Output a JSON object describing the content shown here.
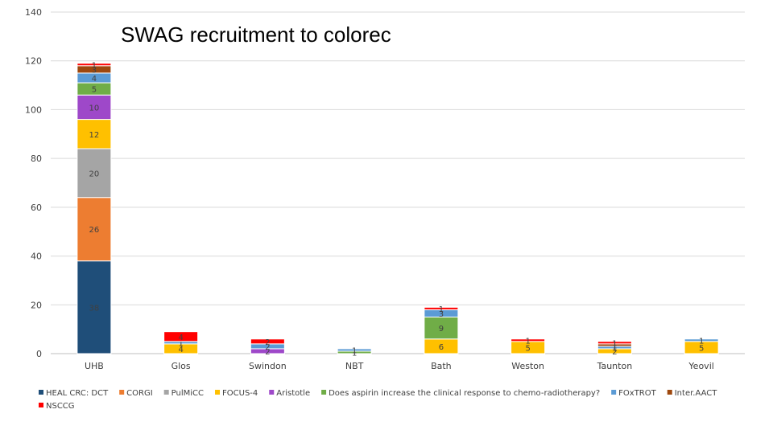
{
  "chart_data": {
    "type": "bar",
    "stacked": true,
    "title": "SWAG recruitment to colorec",
    "xlabel": "",
    "ylabel": "",
    "ylim": [
      0,
      140
    ],
    "yticks": [
      0,
      20,
      40,
      60,
      80,
      100,
      120,
      140
    ],
    "grid": true,
    "legend_position": "bottom",
    "categories": [
      "UHB",
      "Glos",
      "Swindon",
      "NBT",
      "Bath",
      "Weston",
      "Taunton",
      "Yeovil"
    ],
    "series": [
      {
        "name": "HEAL CRC: DCT",
        "color": "#1f4e79",
        "values": [
          38,
          0,
          0,
          0,
          0,
          0,
          0,
          0
        ]
      },
      {
        "name": "CORGI",
        "color": "#ed7d31",
        "values": [
          26,
          0,
          0,
          0,
          0,
          0,
          0,
          0
        ]
      },
      {
        "name": "PulMiCC",
        "color": "#a5a5a5",
        "values": [
          20,
          0,
          0,
          0,
          0,
          0,
          0,
          0
        ]
      },
      {
        "name": "FOCUS-4",
        "color": "#ffc000",
        "values": [
          12,
          4,
          0,
          0,
          6,
          5,
          2,
          5
        ]
      },
      {
        "name": "Aristotle",
        "color": "#9e48c9",
        "values": [
          10,
          0,
          2,
          0,
          0,
          0,
          0,
          0
        ]
      },
      {
        "name": "Does aspirin increase the clinical response to chemo-radiotherapy?",
        "color": "#70ad47",
        "values": [
          5,
          0,
          0,
          1,
          9,
          0,
          0,
          0
        ]
      },
      {
        "name": "FOxTROT",
        "color": "#5b9bd5",
        "values": [
          4,
          1,
          2,
          1,
          3,
          0,
          1,
          1
        ]
      },
      {
        "name": "Inter.AACT",
        "color": "#9e480e",
        "values": [
          3,
          0,
          0,
          0,
          0,
          0,
          1,
          0
        ]
      },
      {
        "name": "NSCCG",
        "color": "#ff0000",
        "values": [
          1,
          4,
          2,
          0,
          1,
          1,
          1,
          0
        ]
      }
    ]
  }
}
